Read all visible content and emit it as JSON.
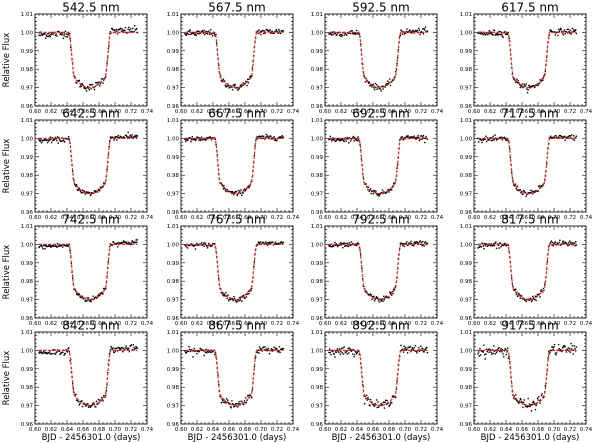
{
  "chart_data": {
    "type": "scatter",
    "layout": {
      "rows": 4,
      "cols": 4
    },
    "shared_ylabel": "Relative Flux",
    "shared_xlabel": "BJD - 2456301.0 (days)",
    "xlim": [
      0.6,
      0.74
    ],
    "ylim": [
      0.96,
      1.01
    ],
    "x_ticks": [
      "0.60",
      "0.62",
      "0.64",
      "0.66",
      "0.68",
      "0.70",
      "0.72",
      "0.74"
    ],
    "y_ticks": [
      "0.96",
      "0.97",
      "0.98",
      "0.99",
      "1.00",
      "1.01"
    ],
    "data_x_range": [
      0.605,
      0.728
    ],
    "transit": {
      "t_start": 0.6425,
      "t_end": 0.695,
      "t_min": 0.6685,
      "depth": 0.03
    },
    "series_colors": {
      "observed": "#000000",
      "model": "#e8221b"
    },
    "panels": [
      {
        "title": "542.5 nm",
        "noise": 0.001
      },
      {
        "title": "567.5 nm",
        "noise": 0.0009
      },
      {
        "title": "592.5 nm",
        "noise": 0.0008
      },
      {
        "title": "617.5 nm",
        "noise": 0.0008
      },
      {
        "title": "642.5 nm",
        "noise": 0.0007
      },
      {
        "title": "667.5 nm",
        "noise": 0.0007
      },
      {
        "title": "692.5 nm",
        "noise": 0.0007
      },
      {
        "title": "717.5 nm",
        "noise": 0.0007
      },
      {
        "title": "742.5 nm",
        "noise": 0.0007
      },
      {
        "title": "767.5 nm",
        "noise": 0.0007
      },
      {
        "title": "792.5 nm",
        "noise": 0.0007
      },
      {
        "title": "817.5 nm",
        "noise": 0.0008
      },
      {
        "title": "842.5 nm",
        "noise": 0.0009
      },
      {
        "title": "867.5 nm",
        "noise": 0.001
      },
      {
        "title": "892.5 nm",
        "noise": 0.0011
      },
      {
        "title": "917.5 nm",
        "noise": 0.0014
      }
    ]
  }
}
